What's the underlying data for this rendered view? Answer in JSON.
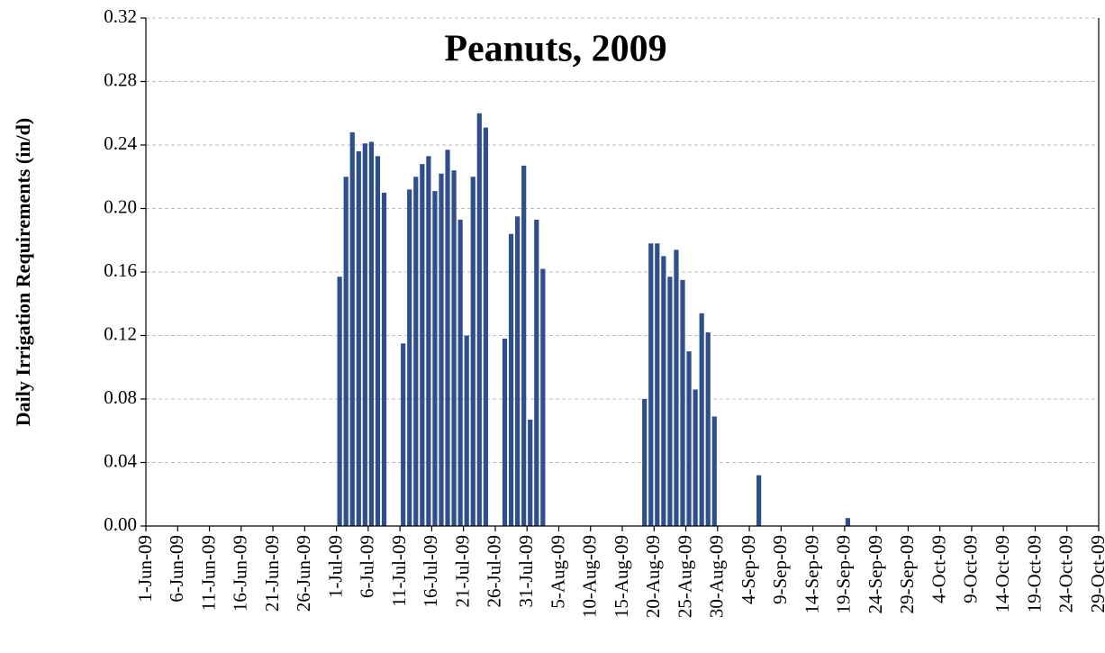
{
  "chart_data": {
    "type": "bar",
    "title": "Peanuts, 2009",
    "y_label": "Daily Irrigation Requirements (in/d)",
    "color": "#2f4f8c",
    "grid": true,
    "ylim": [
      0,
      0.32
    ],
    "yticks": [
      {
        "value": 0,
        "label": "0.00"
      },
      {
        "value": 0.04,
        "label": "0.04"
      },
      {
        "value": 0.08,
        "label": "0.08"
      },
      {
        "value": 0.12,
        "label": "0.12"
      },
      {
        "value": 0.16,
        "label": "0.16"
      },
      {
        "value": 0.2,
        "label": "0.20"
      },
      {
        "value": 0.24,
        "label": "0.24"
      },
      {
        "value": 0.28,
        "label": "0.28"
      },
      {
        "value": 0.32,
        "label": "0.32"
      }
    ],
    "categories": [
      "1-Jun-09",
      null,
      null,
      null,
      null,
      "6-Jun-09",
      null,
      null,
      null,
      null,
      "11-Jun-09",
      null,
      null,
      null,
      null,
      "16-Jun-09",
      null,
      null,
      null,
      null,
      "21-Jun-09",
      null,
      null,
      null,
      null,
      "26-Jun-09",
      null,
      null,
      null,
      null,
      "1-Jul-09",
      null,
      null,
      null,
      null,
      "6-Jul-09",
      null,
      null,
      null,
      null,
      "11-Jul-09",
      null,
      null,
      null,
      null,
      "16-Jul-09",
      null,
      null,
      null,
      null,
      "21-Jul-09",
      null,
      null,
      null,
      null,
      "26-Jul-09",
      null,
      null,
      null,
      null,
      "31-Jul-09",
      null,
      null,
      null,
      null,
      "5-Aug-09",
      null,
      null,
      null,
      null,
      "10-Aug-09",
      null,
      null,
      null,
      null,
      "15-Aug-09",
      null,
      null,
      null,
      null,
      "20-Aug-09",
      null,
      null,
      null,
      null,
      "25-Aug-09",
      null,
      null,
      null,
      null,
      "30-Aug-09",
      null,
      null,
      null,
      null,
      "4-Sep-09",
      null,
      null,
      null,
      null,
      "9-Sep-09",
      null,
      null,
      null,
      null,
      "14-Sep-09",
      null,
      null,
      null,
      null,
      "19-Sep-09",
      null,
      null,
      null,
      null,
      "24-Sep-09",
      null,
      null,
      null,
      null,
      "29-Sep-09",
      null,
      null,
      null,
      null,
      "4-Oct-09",
      null,
      null,
      null,
      null,
      "9-Oct-09",
      null,
      null,
      null,
      null,
      "14-Oct-09",
      null,
      null,
      null,
      null,
      "19-Oct-09",
      null,
      null,
      null,
      null,
      "24-Oct-09",
      null,
      null,
      null,
      null,
      "29-Oct-09"
    ],
    "values": [
      0,
      0,
      0,
      0,
      0,
      0,
      0,
      0,
      0,
      0,
      0,
      0,
      0,
      0,
      0,
      0,
      0,
      0,
      0,
      0,
      0,
      0,
      0,
      0,
      0,
      0,
      0,
      0,
      0,
      0,
      0.157,
      0.22,
      0.248,
      0.236,
      0.241,
      0.242,
      0.233,
      0.21,
      0,
      0,
      0.115,
      0.212,
      0.22,
      0.228,
      0.233,
      0.211,
      0.222,
      0.237,
      0.224,
      0.193,
      0.12,
      0.22,
      0.26,
      0.251,
      0,
      0,
      0.118,
      0.184,
      0.195,
      0.227,
      0.067,
      0.193,
      0.162,
      0,
      0,
      0,
      0,
      0,
      0,
      0,
      0,
      0,
      0,
      0,
      0,
      0,
      0,
      0,
      0.08,
      0.178,
      0.178,
      0.17,
      0.157,
      0.174,
      0.155,
      0.11,
      0.086,
      0.134,
      0.122,
      0.069,
      0,
      0,
      0,
      0,
      0,
      0,
      0.032,
      0,
      0,
      0,
      0,
      0,
      0,
      0,
      0,
      0,
      0,
      0,
      0,
      0,
      0.005,
      0,
      0,
      0,
      0,
      0,
      0,
      0,
      0,
      0,
      0,
      0,
      0,
      0,
      0,
      0,
      0,
      0,
      0,
      0,
      0,
      0,
      0,
      0,
      0,
      0,
      0,
      0,
      0,
      0,
      0,
      0,
      0,
      0,
      0,
      0,
      0,
      0,
      0,
      0,
      0
    ]
  }
}
